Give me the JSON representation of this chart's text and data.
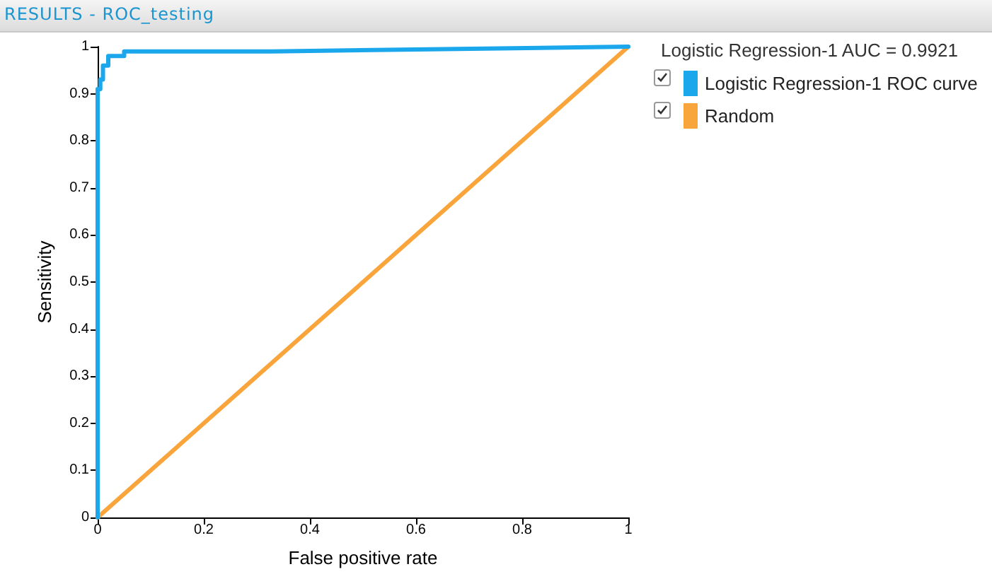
{
  "chart_data": {
    "type": "line",
    "title": "RESULTS - ROC_testing",
    "xlabel": "False positive rate",
    "ylabel": "Sensitivity",
    "legend_title": "Logistic Regression-1 AUC = 0.9921",
    "legend": "top right",
    "grid": false,
    "marker": "none",
    "line_style": "solid",
    "xlim": [
      0,
      1
    ],
    "ylim": [
      0,
      1
    ],
    "xticks": [
      0,
      0.2,
      0.4,
      0.6,
      0.8,
      1
    ],
    "yticks": [
      0,
      0.1,
      0.2,
      0.3,
      0.4,
      0.5,
      0.6,
      0.7,
      0.8,
      0.9,
      1
    ],
    "series": [
      {
        "name": "Logistic Regression-1 ROC curve",
        "color": "#1aa7ec",
        "x": [
          0,
          0,
          0.005,
          0.005,
          0.01,
          0.01,
          0.02,
          0.02,
          0.05,
          0.05,
          0.33,
          1
        ],
        "values": [
          0,
          0.91,
          0.91,
          0.93,
          0.93,
          0.96,
          0.96,
          0.98,
          0.98,
          0.99,
          0.99,
          1
        ]
      },
      {
        "name": "Random",
        "color": "#f9a53b",
        "x": [
          0,
          1
        ],
        "values": [
          0,
          1
        ]
      }
    ]
  }
}
